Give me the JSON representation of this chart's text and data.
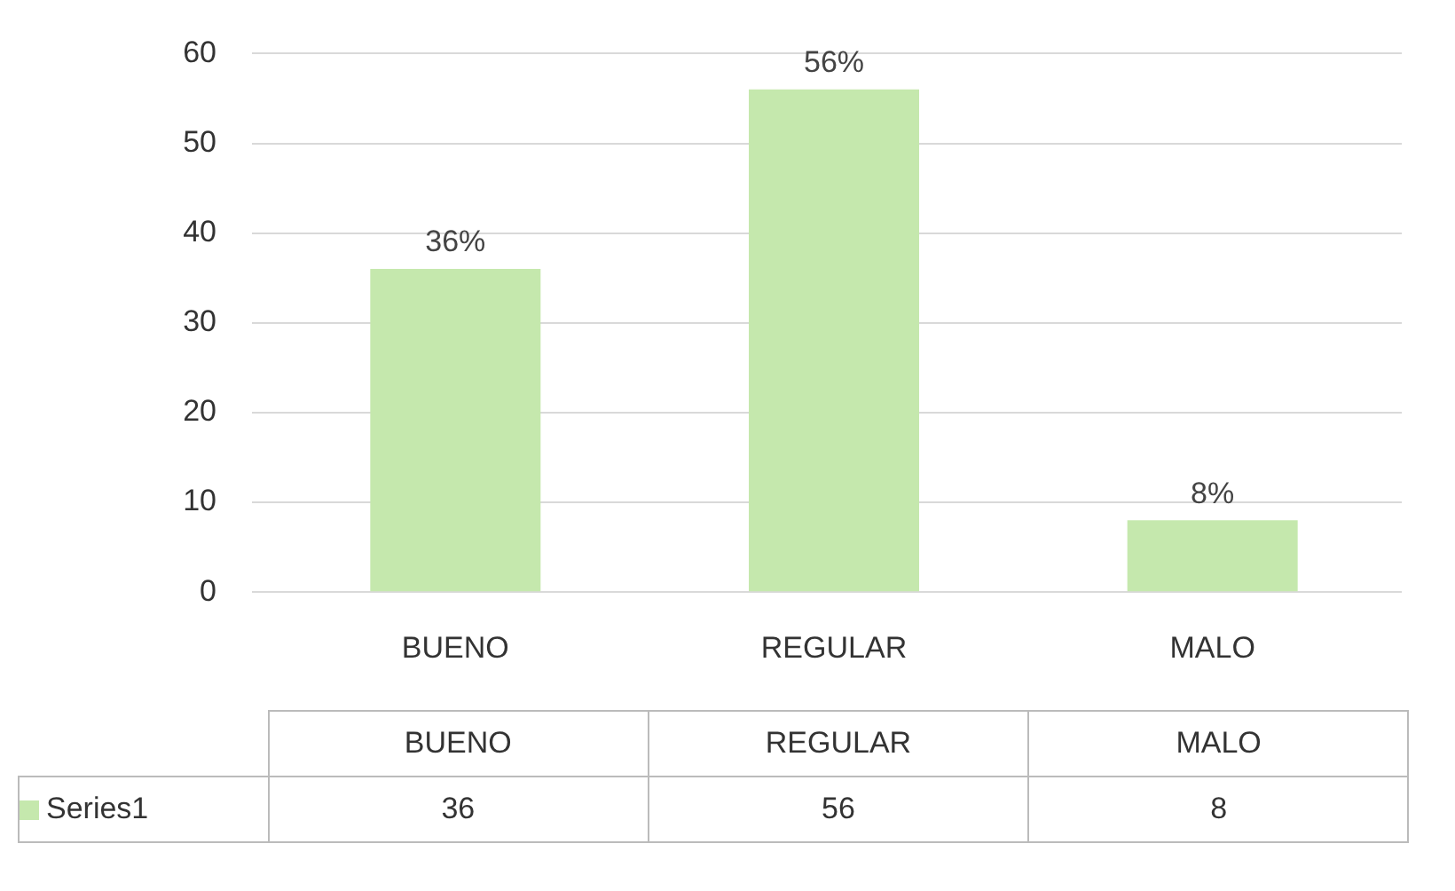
{
  "chart_data": {
    "type": "bar",
    "categories": [
      "BUENO",
      "REGULAR",
      "MALO"
    ],
    "series": [
      {
        "name": "Series1",
        "color": "#c5e8ad",
        "values": [
          36,
          56,
          8
        ],
        "value_labels": [
          "36%",
          "56%",
          "8%"
        ]
      }
    ],
    "ylim": [
      0,
      60
    ],
    "yticks": [
      0,
      10,
      20,
      30,
      40,
      50,
      60
    ],
    "grid": "y",
    "legend": "bottom",
    "annotations": [
      "36",
      "56",
      "8"
    ]
  }
}
